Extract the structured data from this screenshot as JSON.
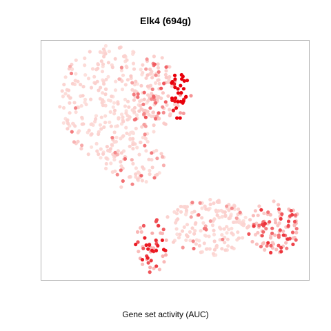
{
  "chart_data": {
    "type": "scatter",
    "title": "Elk4 (694g)",
    "xlabel": "Gene set activity (AUC)",
    "ylabel": "",
    "grid": false,
    "legend": "none",
    "color_scale": {
      "low": "#fde6e2",
      "high": "#e8000b"
    },
    "clusters": [
      {
        "name": "upper-left",
        "cx": 0.26,
        "cy": 0.74,
        "rx": 0.2,
        "ry": 0.24,
        "n": 260,
        "level": 0.05,
        "hi_frac": 0.06
      },
      {
        "name": "upper-mid",
        "cx": 0.42,
        "cy": 0.78,
        "rx": 0.1,
        "ry": 0.16,
        "n": 110,
        "level": 0.15,
        "hi_frac": 0.35
      },
      {
        "name": "upper-right-hot",
        "cx": 0.52,
        "cy": 0.77,
        "rx": 0.04,
        "ry": 0.1,
        "n": 35,
        "level": 0.7,
        "hi_frac": 0.8
      },
      {
        "name": "middle-strip",
        "cx": 0.34,
        "cy": 0.5,
        "rx": 0.12,
        "ry": 0.12,
        "n": 90,
        "level": 0.06,
        "hi_frac": 0.15
      },
      {
        "name": "bottom-center",
        "cx": 0.62,
        "cy": 0.22,
        "rx": 0.16,
        "ry": 0.12,
        "n": 170,
        "level": 0.05,
        "hi_frac": 0.1
      },
      {
        "name": "bottom-left-hot",
        "cx": 0.41,
        "cy": 0.14,
        "rx": 0.06,
        "ry": 0.12,
        "n": 55,
        "level": 0.45,
        "hi_frac": 0.6
      },
      {
        "name": "bottom-right",
        "cx": 0.87,
        "cy": 0.22,
        "rx": 0.1,
        "ry": 0.11,
        "n": 110,
        "level": 0.3,
        "hi_frac": 0.45
      }
    ]
  }
}
